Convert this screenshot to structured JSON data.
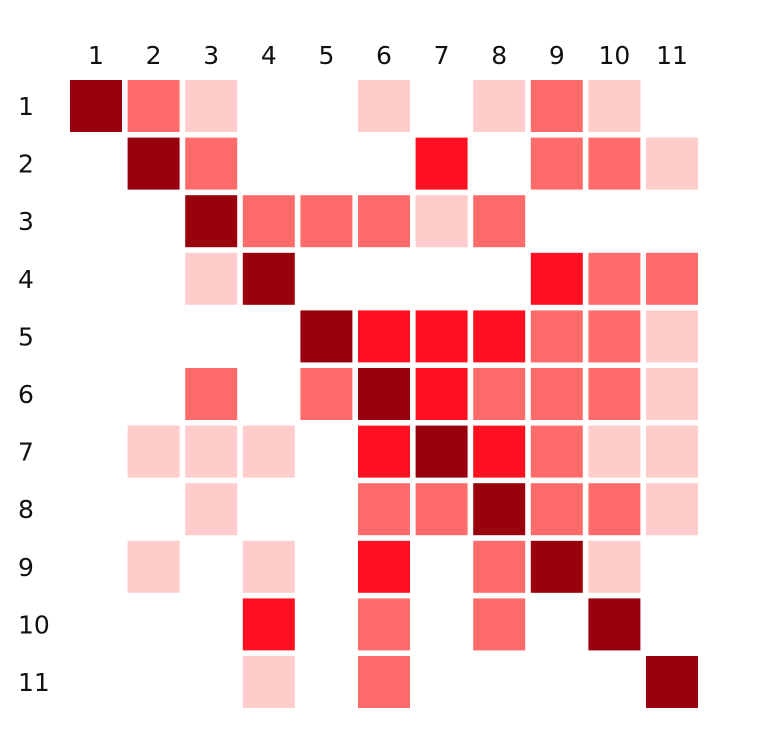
{
  "chart_data": {
    "type": "heatmap",
    "x_labels": [
      "1",
      "2",
      "3",
      "4",
      "5",
      "6",
      "7",
      "8",
      "9",
      "10",
      "11"
    ],
    "y_labels": [
      "1",
      "2",
      "3",
      "4",
      "5",
      "6",
      "7",
      "8",
      "9",
      "10",
      "11"
    ],
    "levels": {
      "0": "#ffffff",
      "1": "#ffcccc",
      "2": "#ff6b6b",
      "3": "#ff0f1f",
      "4": "#99000d"
    },
    "values": [
      [
        4,
        2,
        1,
        0,
        0,
        1,
        0,
        1,
        2,
        1,
        0
      ],
      [
        0,
        4,
        2,
        0,
        0,
        0,
        3,
        0,
        2,
        2,
        1
      ],
      [
        0,
        0,
        4,
        2,
        2,
        2,
        1,
        2,
        0,
        0,
        0
      ],
      [
        0,
        0,
        1,
        4,
        0,
        0,
        0,
        0,
        3,
        2,
        2
      ],
      [
        0,
        0,
        0,
        0,
        4,
        3,
        3,
        3,
        2,
        2,
        1
      ],
      [
        0,
        0,
        2,
        0,
        2,
        4,
        3,
        2,
        2,
        2,
        1
      ],
      [
        0,
        1,
        1,
        1,
        0,
        3,
        4,
        3,
        2,
        1,
        1
      ],
      [
        0,
        0,
        1,
        0,
        0,
        2,
        2,
        4,
        2,
        2,
        1
      ],
      [
        0,
        1,
        0,
        1,
        0,
        3,
        0,
        2,
        4,
        1,
        0
      ],
      [
        0,
        0,
        0,
        3,
        0,
        2,
        0,
        2,
        0,
        4,
        0
      ],
      [
        0,
        0,
        0,
        1,
        0,
        2,
        0,
        0,
        0,
        0,
        4
      ]
    ],
    "xlabel": "",
    "ylabel": "",
    "title": "",
    "legend": "none",
    "grid": false
  }
}
